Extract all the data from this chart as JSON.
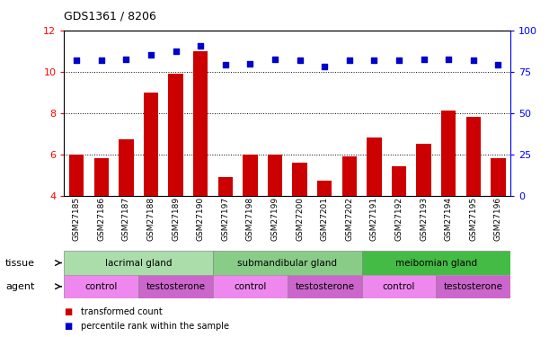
{
  "title": "GDS1361 / 8206",
  "samples": [
    "GSM27185",
    "GSM27186",
    "GSM27187",
    "GSM27188",
    "GSM27189",
    "GSM27190",
    "GSM27197",
    "GSM27198",
    "GSM27199",
    "GSM27200",
    "GSM27201",
    "GSM27202",
    "GSM27191",
    "GSM27192",
    "GSM27193",
    "GSM27194",
    "GSM27195",
    "GSM27196"
  ],
  "bar_values": [
    6.0,
    5.8,
    6.7,
    9.0,
    9.9,
    11.0,
    4.9,
    6.0,
    6.0,
    5.6,
    4.7,
    5.9,
    6.8,
    5.4,
    6.5,
    8.1,
    7.8,
    5.8
  ],
  "percentile_values": [
    82.0,
    82.0,
    82.5,
    85.0,
    87.5,
    90.5,
    79.0,
    79.5,
    82.5,
    82.0,
    78.0,
    82.0,
    82.0,
    82.0,
    82.5,
    82.5,
    82.0,
    79.0
  ],
  "bar_color": "#cc0000",
  "dot_color": "#0000cc",
  "ylim_left": [
    4,
    12
  ],
  "ylim_right": [
    0,
    100
  ],
  "yticks_left": [
    4,
    6,
    8,
    10,
    12
  ],
  "yticks_right": [
    0,
    25,
    50,
    75,
    100
  ],
  "tissue_groups": [
    {
      "label": "lacrimal gland",
      "start": 0,
      "end": 6,
      "color": "#aaddaa"
    },
    {
      "label": "submandibular gland",
      "start": 6,
      "end": 12,
      "color": "#88cc88"
    },
    {
      "label": "meibomian gland",
      "start": 12,
      "end": 18,
      "color": "#44bb44"
    }
  ],
  "agent_groups": [
    {
      "label": "control",
      "start": 0,
      "end": 3,
      "color": "#ee88ee"
    },
    {
      "label": "testosterone",
      "start": 3,
      "end": 6,
      "color": "#cc66cc"
    },
    {
      "label": "control",
      "start": 6,
      "end": 9,
      "color": "#ee88ee"
    },
    {
      "label": "testosterone",
      "start": 9,
      "end": 12,
      "color": "#cc66cc"
    },
    {
      "label": "control",
      "start": 12,
      "end": 15,
      "color": "#ee88ee"
    },
    {
      "label": "testosterone",
      "start": 15,
      "end": 18,
      "color": "#cc66cc"
    }
  ],
  "legend_items": [
    {
      "label": "transformed count",
      "color": "#cc0000"
    },
    {
      "label": "percentile rank within the sample",
      "color": "#0000cc"
    }
  ],
  "background_color": "#ffffff",
  "grid_color": "#000000"
}
